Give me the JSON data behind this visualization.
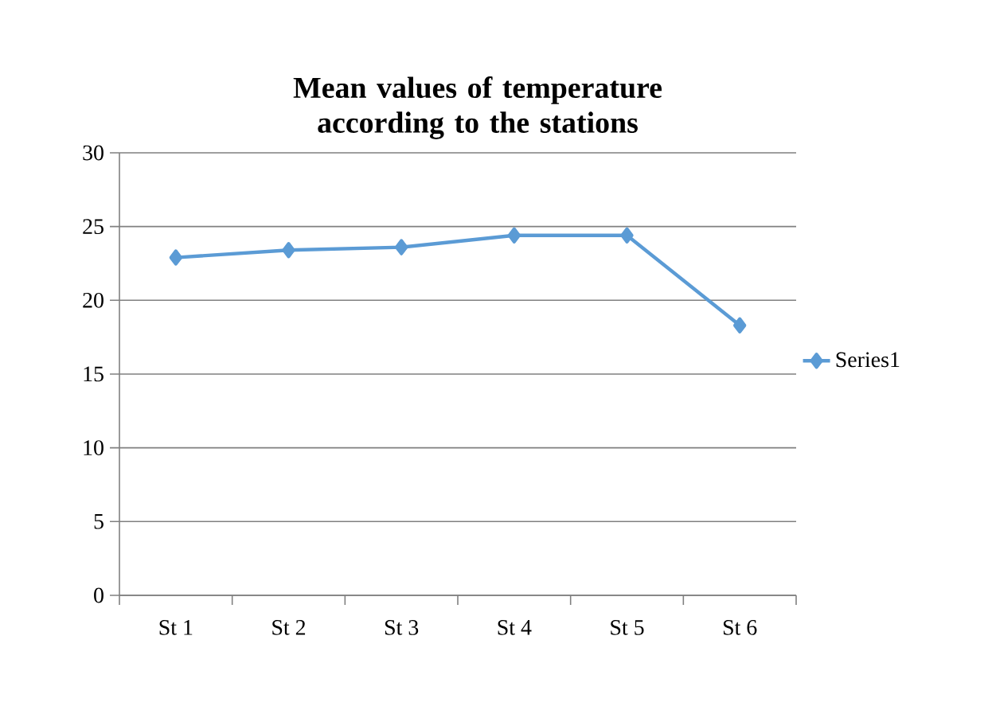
{
  "chart_data": {
    "type": "line",
    "title": "Mean values of temperature according to the stations",
    "categories": [
      "St 1",
      "St 2",
      "St 3",
      "St 4",
      "St 5",
      "St 6"
    ],
    "series": [
      {
        "name": "Series1",
        "color": "#5b9bd5",
        "values": [
          22.9,
          23.4,
          23.6,
          24.4,
          24.4,
          18.3
        ]
      }
    ],
    "ylim": [
      0,
      30
    ],
    "yticks": [
      0,
      5,
      10,
      15,
      20,
      25,
      30
    ],
    "grid": "y",
    "legend": "right",
    "marker": "diamond",
    "line_style": "solid"
  }
}
